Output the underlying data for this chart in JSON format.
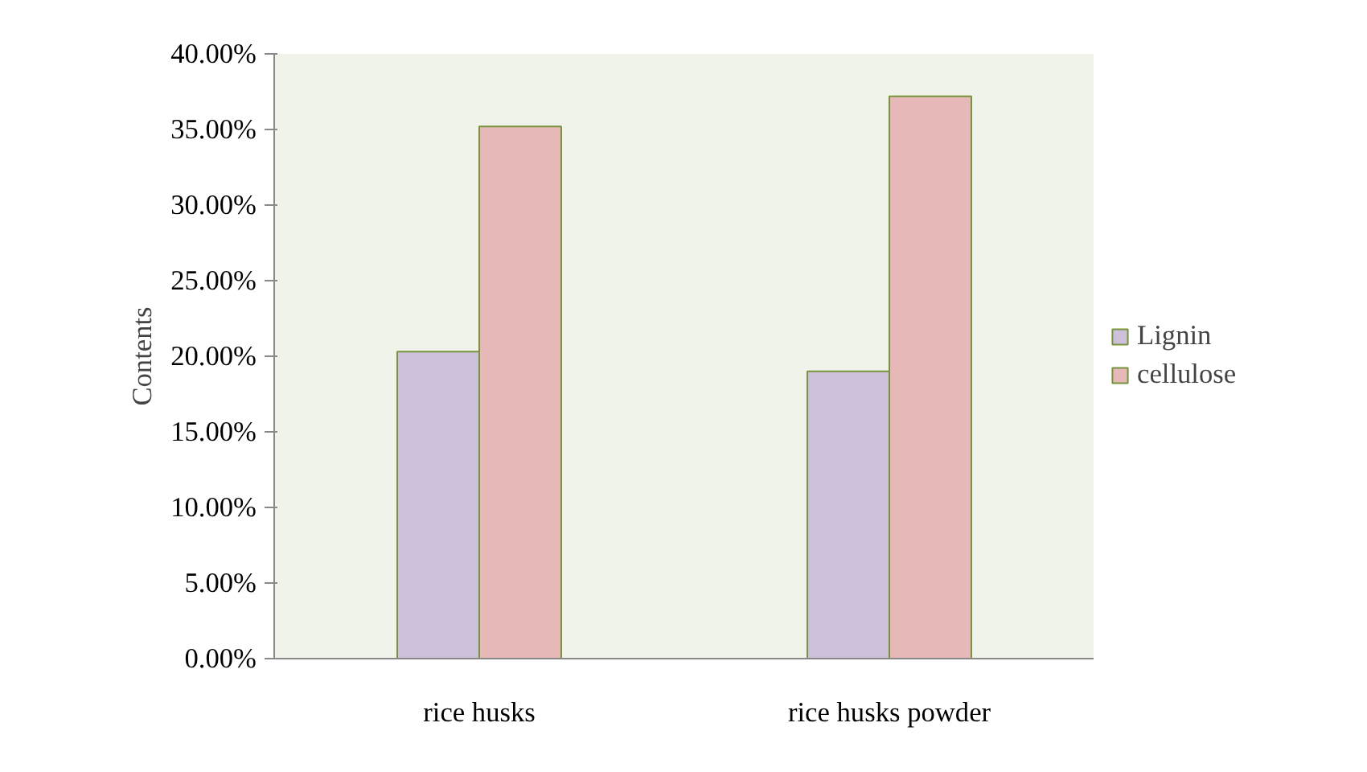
{
  "chart_data": {
    "type": "bar",
    "ylabel": "Contents",
    "categories": [
      "rice husks",
      "rice husks powder"
    ],
    "series": [
      {
        "name": "Lignin",
        "color": "#ccc0da",
        "values": [
          20.3,
          19.0
        ]
      },
      {
        "name": "cellulose",
        "color": "#e6b9b8",
        "values": [
          35.2,
          37.2
        ]
      }
    ],
    "ylim": [
      0,
      40
    ],
    "yticks": [
      {
        "value": 0,
        "label": "0.00%"
      },
      {
        "value": 5,
        "label": "5.00%"
      },
      {
        "value": 10,
        "label": "10.00%"
      },
      {
        "value": 15,
        "label": "15.00%"
      },
      {
        "value": 20,
        "label": "20.00%"
      },
      {
        "value": 25,
        "label": "25.00%"
      },
      {
        "value": 30,
        "label": "30.00%"
      },
      {
        "value": 35,
        "label": "35.00%"
      },
      {
        "value": 40,
        "label": "40.00%"
      }
    ],
    "grid": false,
    "legend": "right"
  }
}
